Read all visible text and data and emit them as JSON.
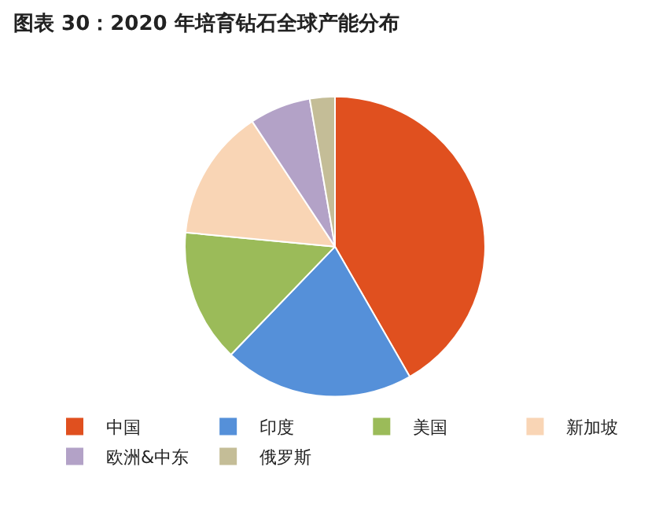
{
  "chart_data": {
    "type": "pie",
    "title": "图表 30：2020 年培育钻石全球产能分布",
    "categories": [
      "中国",
      "印度",
      "美国",
      "新加坡",
      "欧洲&中东",
      "俄罗斯"
    ],
    "values": [
      41.7,
      20.5,
      14.3,
      14.2,
      6.6,
      2.7
    ],
    "colors": [
      "#e0501f",
      "#5590d9",
      "#9bbb59",
      "#f9d5b5",
      "#b3a2c7",
      "#c4bd97"
    ],
    "legend": "bottom"
  }
}
